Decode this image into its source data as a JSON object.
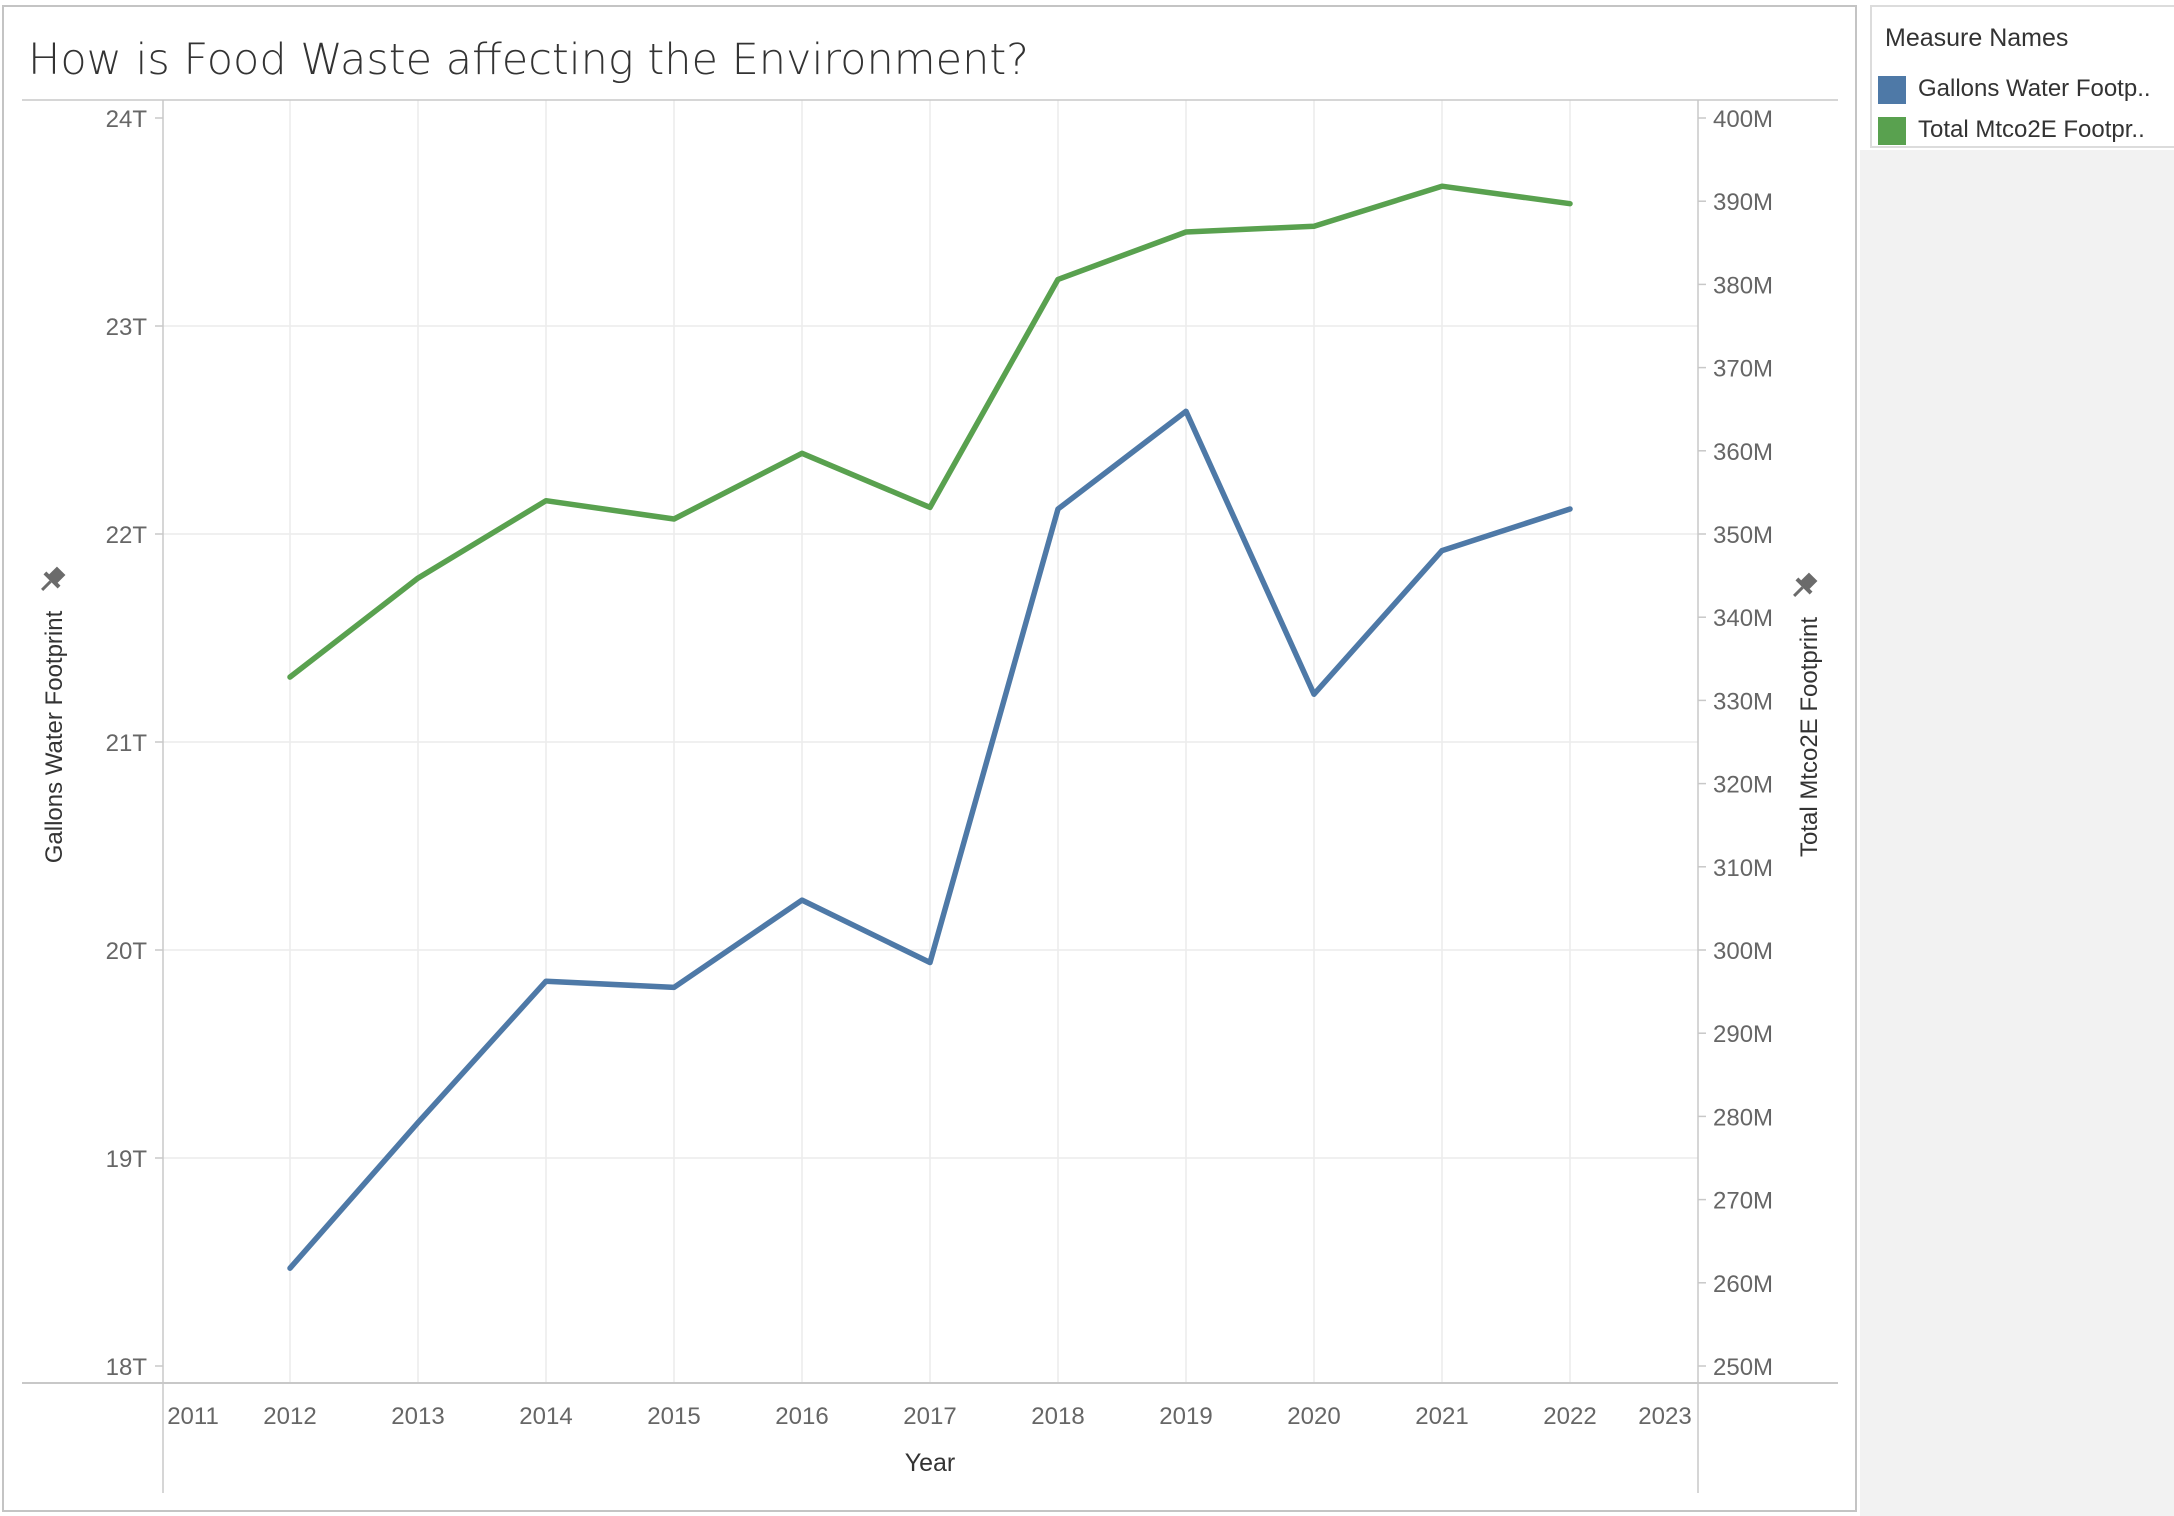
{
  "title": "How is Food Waste affecting the Environment?",
  "legend": {
    "title": "Measure Names",
    "items": [
      {
        "label": "Gallons Water Footp..",
        "color": "#4e79a7"
      },
      {
        "label": "Total Mtco2E Footpr..",
        "color": "#59a14f"
      }
    ]
  },
  "chart_data": {
    "type": "line",
    "xlabel": "Year",
    "x_ticks": [
      "2011",
      "2012",
      "2013",
      "2014",
      "2015",
      "2016",
      "2017",
      "2018",
      "2019",
      "2020",
      "2021",
      "2022",
      "2023"
    ],
    "xlim": [
      2011,
      2023
    ],
    "y_left": {
      "label": "Gallons Water Footprint",
      "ylim": [
        18,
        24
      ],
      "unit_suffix": "T",
      "ticks": [
        "18T",
        "19T",
        "20T",
        "21T",
        "22T",
        "23T",
        "24T"
      ],
      "tick_values": [
        18,
        19,
        20,
        21,
        22,
        23,
        24
      ]
    },
    "y_right": {
      "label": "Total Mtco2E Footprint",
      "ylim": [
        250,
        400
      ],
      "unit_suffix": "M",
      "ticks": [
        "250M",
        "260M",
        "270M",
        "280M",
        "290M",
        "300M",
        "310M",
        "320M",
        "330M",
        "340M",
        "350M",
        "360M",
        "370M",
        "380M",
        "390M",
        "400M"
      ],
      "tick_values": [
        250,
        260,
        270,
        280,
        290,
        300,
        310,
        320,
        330,
        340,
        350,
        360,
        370,
        380,
        390,
        400
      ]
    },
    "x": [
      2012,
      2013,
      2014,
      2015,
      2016,
      2017,
      2018,
      2019,
      2020,
      2021,
      2022
    ],
    "series": [
      {
        "name": "Gallons Water Footprint",
        "axis": "left",
        "color": "#4e79a7",
        "values": [
          18.47,
          19.17,
          19.85,
          19.82,
          20.24,
          19.94,
          22.12,
          22.59,
          21.23,
          21.92,
          22.12
        ]
      },
      {
        "name": "Total Mtco2E Footprint",
        "axis": "right",
        "color": "#59a14f",
        "values": [
          332.8,
          344.7,
          354.0,
          351.8,
          359.7,
          353.2,
          380.6,
          386.3,
          387.0,
          391.8,
          389.7
        ]
      }
    ],
    "grid": true,
    "legend_position": "top-right"
  }
}
